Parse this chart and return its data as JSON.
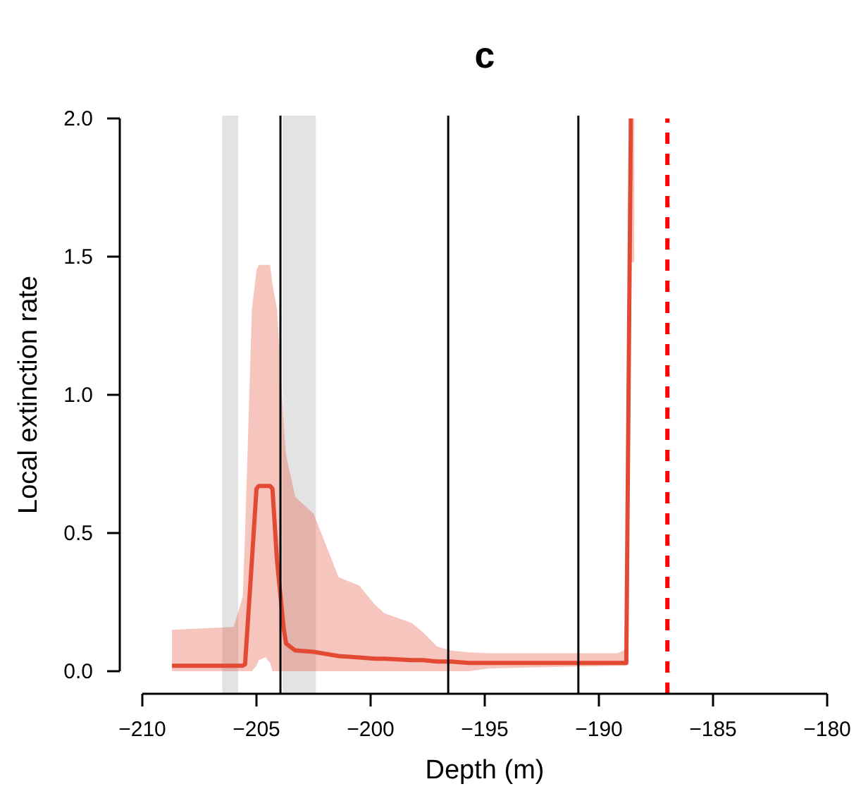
{
  "chart_data": {
    "type": "line",
    "title": "c",
    "xlabel": "Depth (m)",
    "ylabel": "Local extinction rate",
    "xlim": [
      -210,
      -180
    ],
    "xticks": [
      -210,
      -205,
      -200,
      -195,
      -190,
      -185,
      -180
    ],
    "ylim": [
      0,
      2
    ],
    "yticks": [
      {
        "value": 0,
        "label": "0.0"
      },
      {
        "value": 0.5,
        "label": "0.5"
      },
      {
        "value": 1,
        "label": "1.0"
      },
      {
        "value": 1.5,
        "label": "1.5"
      },
      {
        "value": 2,
        "label": "2.0"
      }
    ],
    "grid": false,
    "marker": "none",
    "line_style": "solid",
    "series": [
      {
        "color": "#e34a33",
        "x": [
          -208.7,
          -206.0,
          -205.6,
          -205.5,
          -205.2,
          -205.0,
          -204.9,
          -204.6,
          -204.4,
          -204.3,
          -204.1,
          -203.8,
          -203.7,
          -203.3,
          -202.5,
          -201.4,
          -200.5,
          -199.8,
          -199.4,
          -198.2,
          -197.7,
          -197.1,
          -196.5,
          -195.7,
          -194.8,
          -189.2,
          -188.8,
          -188.6,
          -188.45
        ],
        "values": [
          0.02,
          0.02,
          0.02,
          0.025,
          0.4,
          0.66,
          0.67,
          0.67,
          0.67,
          0.66,
          0.4,
          0.15,
          0.1,
          0.075,
          0.07,
          0.055,
          0.05,
          0.045,
          0.045,
          0.04,
          0.04,
          0.035,
          0.035,
          0.03,
          0.03,
          0.03,
          0.03,
          2.0,
          null
        ],
        "lower": [
          0.0,
          0.0,
          0.0,
          0.0,
          0.0,
          0.02,
          0.04,
          0.05,
          0.03,
          0.0,
          0.0,
          0.0,
          0.0,
          0.0,
          0.0,
          0.0,
          0.0,
          0.0,
          0.0,
          0.0,
          0.0,
          0.0,
          0.0,
          0.0,
          0.01,
          0.02,
          0.02,
          1.48,
          1.48
        ],
        "upper": [
          0.15,
          0.16,
          0.27,
          0.5,
          1.31,
          1.45,
          1.47,
          1.47,
          1.47,
          1.4,
          1.31,
          0.88,
          0.78,
          0.63,
          0.57,
          0.34,
          0.31,
          0.24,
          0.21,
          0.175,
          0.14,
          0.09,
          0.075,
          0.068,
          0.065,
          0.065,
          0.08,
          2.0,
          2.0
        ]
      }
    ],
    "ref_lines": [
      {
        "axis": "x",
        "value": -203.95,
        "color": "#000000",
        "line_style": "solid"
      },
      {
        "axis": "x",
        "value": -196.6,
        "color": "#000000",
        "line_style": "solid"
      },
      {
        "axis": "x",
        "value": -190.9,
        "color": "#000000",
        "line_style": "solid"
      },
      {
        "axis": "x",
        "value": -187.0,
        "color": "#ff0000",
        "line_style": "dashed"
      }
    ],
    "bands": [
      {
        "axis": "x",
        "from": -206.5,
        "to": -205.8,
        "color": "#e3e3e3"
      },
      {
        "axis": "x",
        "from": -203.85,
        "to": -202.4,
        "color": "#e3e3e3"
      }
    ]
  }
}
